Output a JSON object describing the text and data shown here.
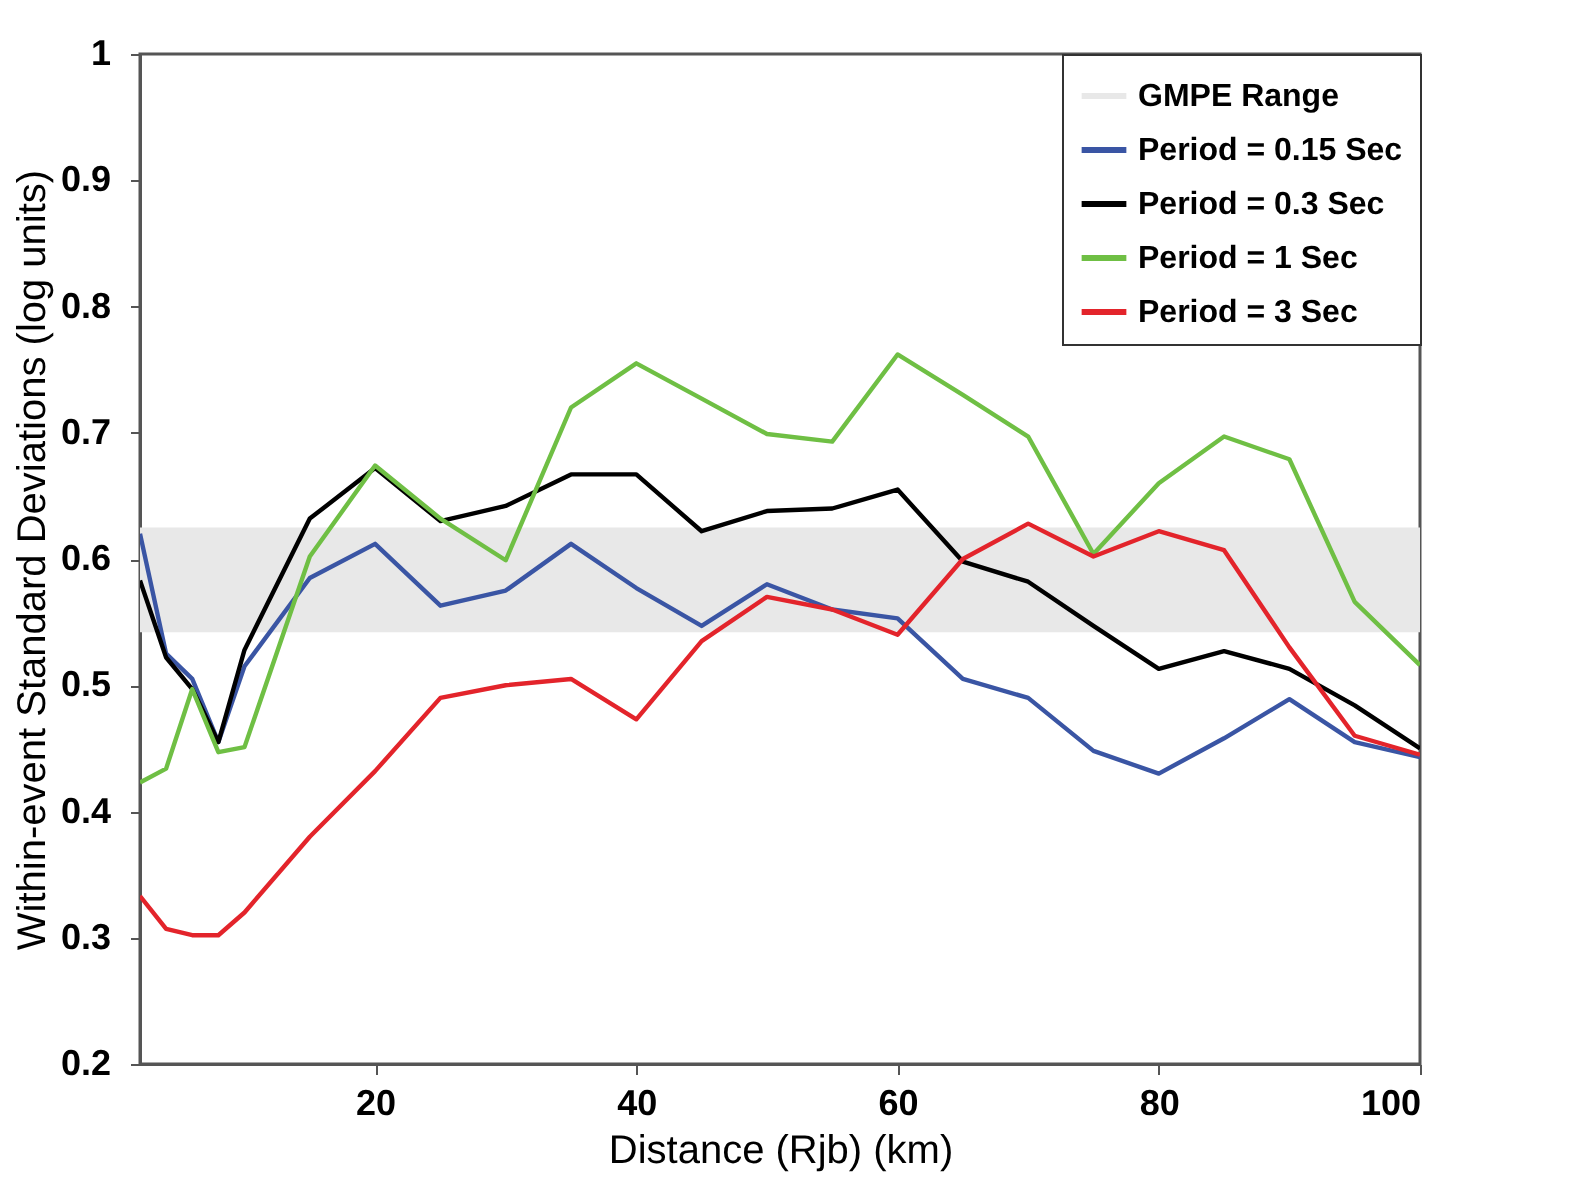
{
  "chart_data": {
    "type": "line",
    "xlabel": "Distance (Rjb) (km)",
    "ylabel": "Within-event Standard Deviations (log units)",
    "x": [
      2,
      4,
      6,
      8,
      10,
      15,
      20,
      25,
      30,
      35,
      40,
      45,
      50,
      55,
      60,
      65,
      70,
      75,
      80,
      85,
      90,
      95,
      100
    ],
    "xlim": [
      2,
      100
    ],
    "xticks": [
      20,
      40,
      60,
      80,
      100
    ],
    "ylim": [
      0.2,
      1
    ],
    "yticks": [
      0.2,
      0.3,
      0.4,
      0.5,
      0.6,
      0.7,
      0.8,
      0.9,
      1
    ],
    "grid": false,
    "legend": "top right",
    "line_style": "solid",
    "marker": "none",
    "bands": [
      {
        "axis": "y",
        "from": 0.542,
        "to": 0.625,
        "label": "GMPE Range",
        "color": "#e8e8e8"
      }
    ],
    "series": [
      {
        "name": "Period = 0.15 Sec",
        "color": "#3a55a4",
        "values": [
          0.62,
          0.525,
          0.505,
          0.455,
          0.515,
          0.585,
          0.612,
          0.563,
          0.575,
          0.612,
          0.577,
          0.547,
          0.58,
          0.56,
          0.553,
          0.505,
          0.49,
          0.448,
          0.43,
          0.458,
          0.489,
          0.455,
          0.443
        ]
      },
      {
        "name": "Period = 0.3 Sec",
        "color": "#000000",
        "values": [
          0.583,
          0.522,
          0.497,
          0.455,
          0.528,
          0.632,
          0.672,
          0.63,
          0.642,
          0.667,
          0.667,
          0.622,
          0.638,
          0.64,
          0.655,
          0.598,
          0.582,
          0.547,
          0.513,
          0.527,
          0.513,
          0.484,
          0.45
        ]
      },
      {
        "name": "Period = 1 Sec",
        "color": "#6fbf44",
        "values": [
          0.423,
          0.434,
          0.497,
          0.447,
          0.451,
          0.602,
          0.674,
          0.632,
          0.599,
          0.72,
          0.755,
          0.727,
          0.699,
          0.693,
          0.762,
          0.73,
          0.697,
          0.604,
          0.66,
          0.697,
          0.679,
          0.566,
          0.516
        ]
      },
      {
        "name": "Period = 3 Sec",
        "color": "#e3242b",
        "values": [
          0.333,
          0.307,
          0.302,
          0.302,
          0.32,
          0.38,
          0.432,
          0.49,
          0.5,
          0.505,
          0.473,
          0.535,
          0.57,
          0.56,
          0.54,
          0.6,
          0.628,
          0.602,
          0.622,
          0.607,
          0.53,
          0.46,
          0.445
        ]
      }
    ]
  }
}
